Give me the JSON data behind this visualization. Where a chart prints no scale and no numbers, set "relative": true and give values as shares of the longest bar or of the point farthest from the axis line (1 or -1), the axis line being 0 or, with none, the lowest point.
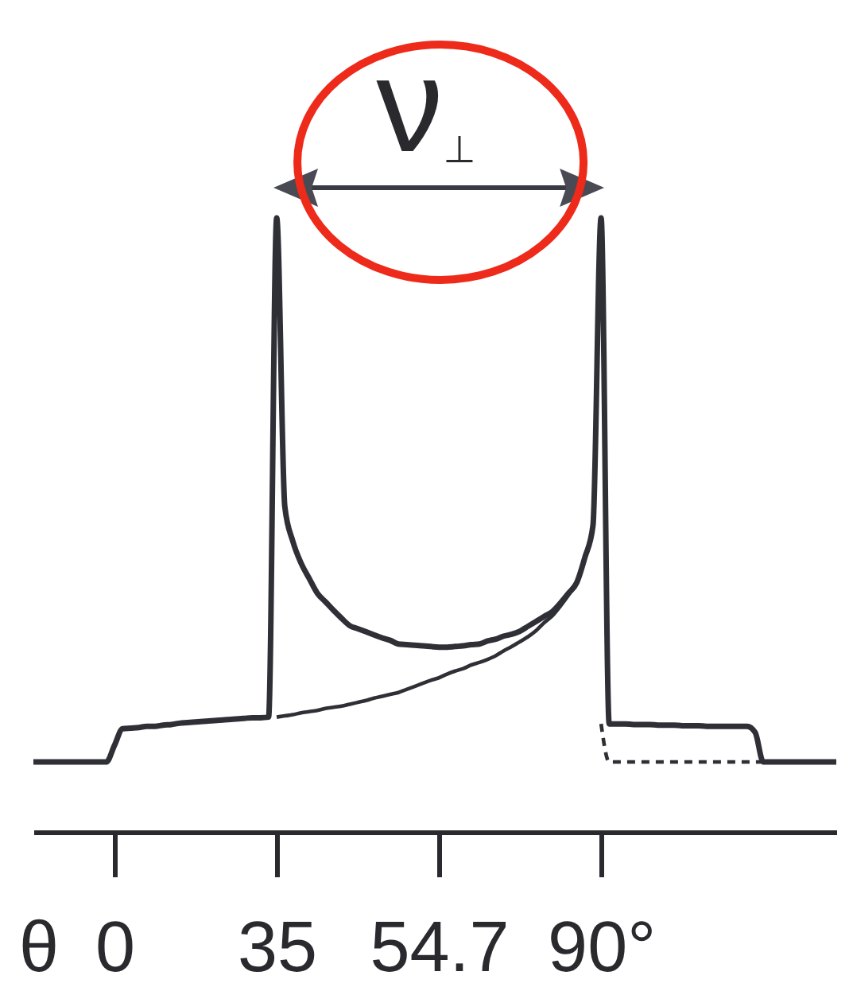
{
  "chart_data": {
    "type": "line",
    "relative": true,
    "xlabel": "θ",
    "annotations": [
      "ν$_{⊥}$"
    ],
    "line_style": "solid",
    "categories": [
      null,
      null,
      null,
      null,
      null,
      null,
      null,
      null,
      null,
      null,
      "0",
      null,
      null,
      null,
      null,
      null,
      null,
      null,
      null,
      null,
      null,
      null,
      null,
      null,
      null,
      null,
      null,
      null,
      null,
      null,
      "35",
      null,
      null,
      null,
      null,
      null,
      null,
      null,
      null,
      null,
      null,
      null,
      null,
      null,
      null,
      null,
      null,
      null,
      null,
      null,
      "54.7",
      null,
      null,
      null,
      null,
      null,
      null,
      null,
      null,
      null,
      null,
      null,
      null,
      null,
      null,
      null,
      null,
      null,
      null,
      null,
      "90°",
      null,
      null,
      null,
      null,
      null,
      null,
      null,
      null,
      null,
      null,
      null,
      null,
      null,
      null,
      null,
      null,
      null,
      null,
      null,
      null,
      null,
      null,
      null,
      null,
      null,
      null,
      null,
      null,
      null
    ],
    "series": [
      {
        "color": "#2f2f36",
        "values": [
          0.114,
          0.114,
          0.114,
          0.114,
          0.114,
          0.114,
          0.114,
          0.114,
          0.114,
          0.114,
          0.141,
          0.168,
          0.169,
          0.17,
          0.172,
          0.172,
          0.174,
          0.175,
          0.177,
          0.178,
          0.179,
          0.18,
          0.181,
          0.182,
          0.183,
          0.184,
          0.185,
          0.186,
          0.186,
          0.187,
          1,
          0.53,
          0.473,
          0.438,
          0.413,
          0.389,
          0.375,
          0.361,
          0.348,
          0.336,
          0.331,
          0.326,
          0.321,
          0.316,
          0.312,
          0.306,
          0.305,
          0.304,
          0.303,
          0.302,
          0.301,
          0.301,
          0.302,
          0.303,
          0.305,
          0.306,
          0.311,
          0.314,
          0.319,
          0.322,
          0.327,
          0.335,
          0.343,
          0.351,
          0.359,
          0.373,
          0.389,
          0.406,
          0.447,
          0.499,
          1,
          0.176,
          0.176,
          0.176,
          0.175,
          0.175,
          0.175,
          0.174,
          0.174,
          0.174,
          0.173,
          0.173,
          0.173,
          0.172,
          0.172,
          0.172,
          0.172,
          0.172,
          0.172,
          0.162,
          0.114,
          0.114,
          0.114,
          0.114,
          0.114,
          0.114,
          0.114,
          0.114,
          0.114,
          0.114
        ]
      },
      {
        "color": "#2f2f36",
        "values": [
          null,
          null,
          null,
          null,
          null,
          null,
          null,
          null,
          null,
          null,
          null,
          null,
          null,
          null,
          null,
          null,
          null,
          null,
          null,
          null,
          null,
          null,
          null,
          null,
          null,
          null,
          null,
          null,
          null,
          null,
          0.187,
          0.189,
          0.191,
          0.194,
          0.196,
          0.198,
          0.201,
          0.203,
          0.205,
          0.208,
          0.211,
          0.214,
          0.218,
          0.221,
          0.224,
          0.227,
          0.232,
          0.237,
          0.242,
          0.247,
          0.251,
          0.257,
          0.262,
          0.266,
          0.272,
          0.276,
          0.281,
          0.287,
          0.295,
          0.302,
          0.31,
          0.318,
          0.328,
          0.341,
          0.352,
          0.368,
          0.386,
          0.406,
          null,
          null,
          null,
          null,
          null,
          null,
          null,
          null,
          null,
          null,
          null,
          null,
          null,
          null,
          null,
          null,
          null,
          null,
          null,
          null,
          null,
          null,
          null,
          null,
          null,
          null,
          null,
          null,
          null,
          null,
          null,
          null
        ]
      },
      {
        "color": "#2f2f36",
        "line_style": "dashed",
        "values": [
          null,
          null,
          null,
          null,
          null,
          null,
          null,
          null,
          null,
          null,
          null,
          null,
          null,
          null,
          null,
          null,
          null,
          null,
          null,
          null,
          null,
          null,
          null,
          null,
          null,
          null,
          null,
          null,
          null,
          null,
          null,
          null,
          null,
          null,
          null,
          null,
          null,
          null,
          null,
          null,
          null,
          null,
          null,
          null,
          null,
          null,
          null,
          null,
          null,
          null,
          null,
          null,
          null,
          null,
          null,
          null,
          null,
          null,
          null,
          null,
          null,
          null,
          null,
          null,
          null,
          null,
          null,
          null,
          null,
          null,
          0.176,
          0.114,
          0.114,
          0.114,
          0.114,
          0.114,
          0.114,
          0.114,
          0.114,
          0.114,
          0.114,
          0.114,
          0.114,
          0.114,
          0.114,
          0.114,
          0.114,
          0.114,
          0.114,
          0.114,
          0.114,
          null,
          null,
          null,
          null,
          null,
          null,
          null,
          null,
          null
        ]
      }
    ]
  }
}
